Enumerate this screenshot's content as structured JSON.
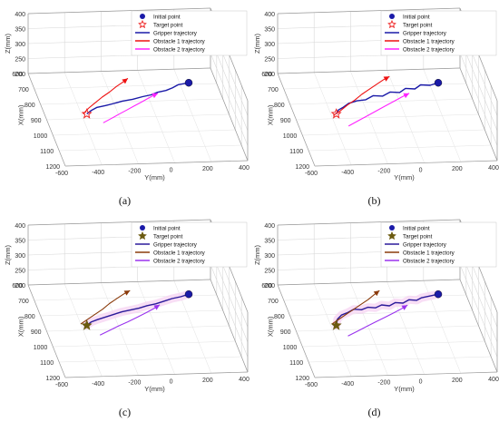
{
  "figure": {
    "panels": [
      {
        "caption": "(a)"
      },
      {
        "caption": "(b)"
      },
      {
        "caption": "(c)"
      },
      {
        "caption": "(d)"
      }
    ]
  },
  "chart_data": [
    {
      "type": "line",
      "panel": "(a)",
      "title": "",
      "xlabel": "Y(mm)",
      "ylabel": "X(mm)",
      "zlabel": "Z(mm)",
      "y_ticks": [
        "-600",
        "-400",
        "-200",
        "0",
        "200",
        "400"
      ],
      "x_ticks": [
        "600",
        "700",
        "800",
        "900",
        "1000",
        "1100",
        "1200"
      ],
      "z_ticks": [
        "200",
        "250",
        "300",
        "350",
        "400"
      ],
      "ylim": [
        -600,
        400
      ],
      "xlim": [
        600,
        1200
      ],
      "zlim": [
        200,
        400
      ],
      "legend": {
        "placement": "top-right",
        "entries": [
          "Initial point",
          "Target point",
          "Gripper trajectory",
          "Obstacle 1 trajectory",
          "Obstacle 2 trajectory"
        ]
      },
      "colors": {
        "initial": "#1a1aa8",
        "target": "#ee2222",
        "gripper": "#1a1aa8",
        "obstacle1": "#ee1111",
        "obstacle2": "#ff22ff",
        "halo": ""
      },
      "series": [
        {
          "name": "Gripper trajectory",
          "y": [
            250,
            190,
            150,
            110,
            60,
            20,
            -30,
            -90,
            -150,
            -200,
            -250,
            -300,
            -340,
            -370
          ],
          "x": [
            690,
            700,
            720,
            735,
            745,
            760,
            770,
            785,
            795,
            808,
            820,
            830,
            850,
            870
          ]
        },
        {
          "name": "Obstacle 1 trajectory",
          "y": [
            -390,
            -350,
            -300,
            -250,
            -200,
            -150,
            -100,
            -70
          ],
          "x": [
            870,
            835,
            800,
            765,
            735,
            700,
            670,
            650
          ]
        },
        {
          "name": "Obstacle 2 trajectory",
          "y": [
            -300,
            -250,
            -200,
            -150,
            -100,
            -50,
            0,
            30,
            60
          ],
          "x": [
            930,
            905,
            880,
            855,
            830,
            805,
            780,
            765,
            752
          ]
        }
      ],
      "points": {
        "initial": {
          "y": 250,
          "x": 690
        },
        "target": {
          "y": -370,
          "x": 870
        }
      }
    },
    {
      "type": "line",
      "panel": "(b)",
      "title": "",
      "xlabel": "Y(mm)",
      "ylabel": "X(mm)",
      "zlabel": "Z(mm)",
      "y_ticks": [
        "-600",
        "-400",
        "-200",
        "0",
        "200",
        "400"
      ],
      "x_ticks": [
        "600",
        "700",
        "800",
        "900",
        "1000",
        "1100",
        "1200"
      ],
      "z_ticks": [
        "200",
        "250",
        "300",
        "350",
        "400"
      ],
      "ylim": [
        -600,
        400
      ],
      "xlim": [
        600,
        1200
      ],
      "zlim": [
        200,
        400
      ],
      "legend": {
        "placement": "top-right",
        "entries": [
          "Initial point",
          "Target point",
          "Gripper trajectory",
          "Obstacle 1 trajectory",
          "Obstacle 2 trajectory"
        ]
      },
      "colors": {
        "initial": "#1a1aa8",
        "target": "#ee2222",
        "gripper": "#1a1aa8",
        "obstacle1": "#ee1111",
        "obstacle2": "#ff22ff",
        "halo": ""
      },
      "series": [
        {
          "name": "Gripper trajectory",
          "y": [
            250,
            200,
            150,
            110,
            60,
            20,
            -30,
            -80,
            -130,
            -180,
            -230,
            -280,
            -320,
            -350,
            -370
          ],
          "x": [
            690,
            705,
            700,
            725,
            720,
            745,
            740,
            765,
            760,
            785,
            790,
            805,
            830,
            845,
            870
          ]
        },
        {
          "name": "Obstacle 1 trajectory",
          "y": [
            -390,
            -340,
            -290,
            -240,
            -190,
            -140,
            -90,
            -40,
            0
          ],
          "x": [
            880,
            850,
            815,
            785,
            750,
            720,
            690,
            660,
            640
          ]
        },
        {
          "name": "Obstacle 2 trajectory",
          "y": [
            -330,
            -270,
            -210,
            -150,
            -90,
            -30,
            20,
            70
          ],
          "x": [
            950,
            920,
            890,
            860,
            830,
            800,
            775,
            752
          ]
        }
      ],
      "points": {
        "initial": {
          "y": 250,
          "x": 690
        },
        "target": {
          "y": -370,
          "x": 870
        }
      }
    },
    {
      "type": "line",
      "panel": "(c)",
      "title": "",
      "xlabel": "Y(mm)",
      "ylabel": "X(mm)",
      "zlabel": "Z(mm)",
      "y_ticks": [
        "-600",
        "-400",
        "-200",
        "0",
        "200",
        "400"
      ],
      "x_ticks": [
        "600",
        "700",
        "800",
        "900",
        "1000",
        "1100",
        "1200"
      ],
      "z_ticks": [
        "200",
        "250",
        "300",
        "350",
        "400"
      ],
      "ylim": [
        -600,
        400
      ],
      "xlim": [
        600,
        1200
      ],
      "zlim": [
        200,
        400
      ],
      "legend": {
        "placement": "top-right",
        "entries": [
          "Initial point",
          "Target point",
          "Gripper trajectory",
          "Obstacle 1 trajectory",
          "Obstacle 2 trajectory"
        ]
      },
      "colors": {
        "initial": "#1a1aa8",
        "target": "#6b5a10",
        "gripper": "#2a1a9a",
        "obstacle1": "#8a3a0a",
        "obstacle2": "#9a33ee",
        "halo": "#f6d6f2"
      },
      "series": [
        {
          "name": "Gripper trajectory",
          "y": [
            250,
            200,
            150,
            100,
            50,
            0,
            -50,
            -100,
            -150,
            -200,
            -250,
            -300,
            -340,
            -370
          ],
          "x": [
            690,
            705,
            715,
            730,
            745,
            755,
            770,
            780,
            790,
            805,
            820,
            835,
            850,
            870
          ]
        },
        {
          "name": "Obstacle 1 trajectory",
          "y": [
            -400,
            -350,
            -300,
            -250,
            -200,
            -150,
            -100,
            -60
          ],
          "x": [
            860,
            830,
            800,
            770,
            735,
            705,
            675,
            655
          ]
        },
        {
          "name": "Obstacle 2 trajectory",
          "y": [
            -320,
            -260,
            -200,
            -140,
            -80,
            -20,
            30,
            70
          ],
          "x": [
            935,
            908,
            880,
            855,
            828,
            800,
            775,
            752
          ]
        }
      ],
      "points": {
        "initial": {
          "y": 250,
          "x": 690
        },
        "target": {
          "y": -370,
          "x": 870
        }
      }
    },
    {
      "type": "line",
      "panel": "(d)",
      "title": "",
      "xlabel": "Y(mm)",
      "ylabel": "X(mm)",
      "zlabel": "Z(mm)",
      "y_ticks": [
        "-600",
        "-400",
        "-200",
        "0",
        "200",
        "400"
      ],
      "x_ticks": [
        "600",
        "700",
        "800",
        "900",
        "1000",
        "1100",
        "1200"
      ],
      "z_ticks": [
        "200",
        "250",
        "300",
        "350",
        "400"
      ],
      "ylim": [
        -600,
        400
      ],
      "xlim": [
        600,
        1200
      ],
      "zlim": [
        200,
        400
      ],
      "legend": {
        "placement": "top-right",
        "entries": [
          "Initial point",
          "Target point",
          "Gripper trajectory",
          "Obstacle 1 trajectory",
          "Obstacle 2 trajectory"
        ]
      },
      "colors": {
        "initial": "#1a1aa8",
        "target": "#6b5a10",
        "gripper": "#2a1a9a",
        "obstacle1": "#8a3a0a",
        "obstacle2": "#9a33ee",
        "halo": "#f6d6f2"
      },
      "series": [
        {
          "name": "Gripper trajectory",
          "y": [
            250,
            200,
            150,
            120,
            80,
            40,
            0,
            -40,
            -80,
            -120,
            -160,
            -200,
            -240,
            -280,
            -320,
            -350,
            -370
          ],
          "x": [
            690,
            700,
            710,
            725,
            720,
            740,
            735,
            755,
            748,
            765,
            760,
            775,
            770,
            790,
            805,
            830,
            870
          ]
        },
        {
          "name": "Obstacle 1 trajectory",
          "y": [
            -390,
            -340,
            -290,
            -240,
            -190,
            -140,
            -100,
            -60
          ],
          "x": [
            860,
            830,
            800,
            770,
            740,
            710,
            682,
            655
          ]
        },
        {
          "name": "Obstacle 2 trajectory",
          "y": [
            -330,
            -270,
            -210,
            -150,
            -90,
            -30,
            20,
            60
          ],
          "x": [
            940,
            912,
            884,
            856,
            828,
            800,
            776,
            754
          ]
        }
      ],
      "points": {
        "initial": {
          "y": 250,
          "x": 690
        },
        "target": {
          "y": -370,
          "x": 870
        }
      }
    }
  ]
}
